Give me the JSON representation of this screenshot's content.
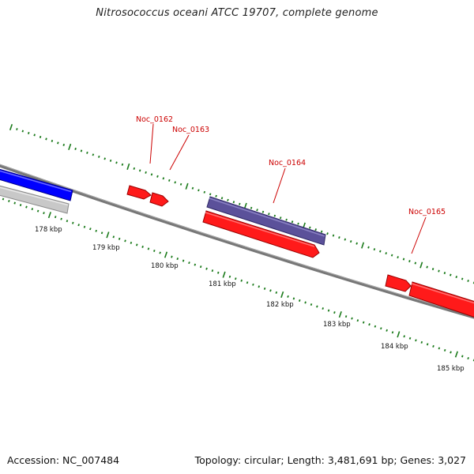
{
  "title": "Nitrosococcus oceani ATCC 19707, complete genome",
  "footer": {
    "accession": "Accession: NC_007484",
    "summary": "Topology: circular; Length: 3,481,691 bp; Genes: 3,027"
  },
  "colors": {
    "backbone": "#808080",
    "forward_gene": "#ff0000",
    "forward_gene_shadow": "#990000",
    "other_gene_purple": "#5b519a",
    "blue_feature": "#0000ff",
    "gray_feature": "#c0c0c0",
    "tick_marks": "#1a7a1a",
    "gene_label": "#cc0000"
  },
  "ruler": {
    "unit": "kbp",
    "labels": [
      "178 kbp",
      "179 kbp",
      "180 kbp",
      "181 kbp",
      "182 kbp",
      "183 kbp",
      "184 kbp",
      "185 kbp"
    ]
  },
  "gene_labels": [
    "Noc_0162",
    "Noc_0163",
    "Noc_0164",
    "Noc_0165"
  ]
}
